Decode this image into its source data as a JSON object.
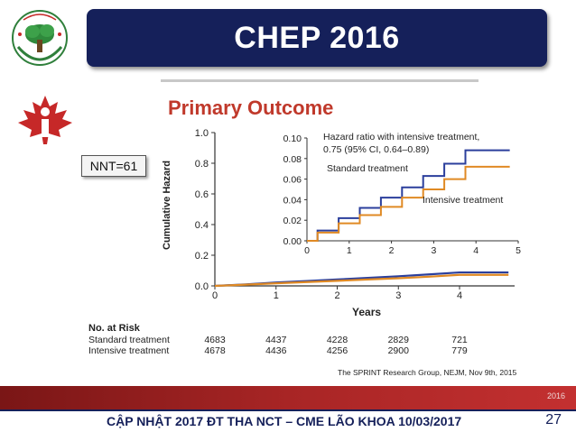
{
  "logo": {
    "text": "SỞ Y TẾ ... HỘI LÃO KHOA"
  },
  "title": "CHEP 2016",
  "nnt_label": "NNT=61",
  "chart_data": {
    "type": "line",
    "title": "Primary Outcome",
    "xlabel": "Years",
    "ylabel": "Cumulative Hazard",
    "xlim": [
      0,
      4.9
    ],
    "ylim": [
      0,
      1.0
    ],
    "x_ticks": [
      "0",
      "1",
      "2",
      "3",
      "4"
    ],
    "y_ticks": [
      "0.0",
      "0.2",
      "0.4",
      "0.6",
      "0.8",
      "1.0"
    ],
    "series": [
      {
        "name": "Standard treatment",
        "color": "#2b3f9c",
        "x": [
          0,
          0.5,
          1,
          1.5,
          2,
          2.5,
          3,
          3.5,
          4,
          4.5,
          4.8
        ],
        "y": [
          0,
          0.01,
          0.022,
          0.032,
          0.042,
          0.052,
          0.063,
          0.075,
          0.088,
          0.088,
          0.088
        ]
      },
      {
        "name": "Intensive treatment",
        "color": "#e08a24",
        "x": [
          0,
          0.5,
          1,
          1.5,
          2,
          2.5,
          3,
          3.5,
          4,
          4.5,
          4.8
        ],
        "y": [
          0,
          0.008,
          0.017,
          0.025,
          0.033,
          0.042,
          0.05,
          0.06,
          0.072,
          0.072,
          0.072
        ]
      }
    ],
    "inset": {
      "xlim": [
        0,
        5
      ],
      "ylim": [
        0,
        0.1
      ],
      "x_ticks": [
        "0",
        "1",
        "2",
        "3",
        "4",
        "5"
      ],
      "y_ticks": [
        "0.00",
        "0.02",
        "0.04",
        "0.06",
        "0.08",
        "0.10"
      ],
      "annotation_lines": [
        "Hazard ratio with intensive treatment,",
        "0.75 (95% CI, 0.64–0.89)"
      ],
      "label_standard": "Standard treatment",
      "label_intensive": "Intensive treatment"
    },
    "at_risk": {
      "header": "No. at Risk",
      "rows": [
        {
          "label": "Standard treatment",
          "values": [
            "4683",
            "4437",
            "4228",
            "2829",
            "721"
          ]
        },
        {
          "label": "Intensive treatment",
          "values": [
            "4678",
            "4436",
            "4256",
            "2900",
            "779"
          ]
        }
      ]
    },
    "source": "The SPRINT Research Group, NEJM, Nov 9th, 2015"
  },
  "band_year": "2016",
  "footer": {
    "text": "CẬP NHẬT 2017 ĐT THA NCT – CME LÃO KHOA 10/03/2017",
    "page": "27"
  }
}
